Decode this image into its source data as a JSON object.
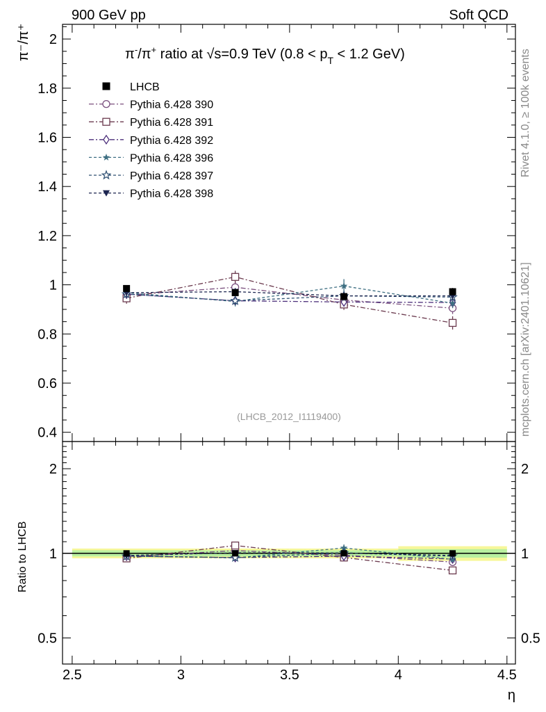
{
  "header": {
    "left": "900 GeV pp",
    "right": "Soft QCD"
  },
  "side_labels": {
    "rivet": "Rivet 4.1.0, ≥ 100k events",
    "mcplots": "mcplots.cern.ch [arXiv:2401.10621]"
  },
  "chart_data": {
    "type": "scatter",
    "title": "π⁻/π⁺ ratio at √s=0.9 TeV (0.8 < p_T < 1.2 GeV)",
    "title_parts": {
      "pre": "π",
      "pre_sup1": "-",
      "mid": "/π",
      "pre_sup2": "+",
      "after": " ratio at ",
      "sqrt": "√",
      "s_text": "s=0.9 TeV (0.8 < p",
      "sub": "T",
      "end": " < 1.2 GeV)"
    },
    "analysis_id": "(LHCB_2012_I1119400)",
    "xlabel": "η",
    "ylabel_main": "π⁻/π⁺",
    "ylabel_ratio": "Ratio to LHCB",
    "xlim": [
      2.5,
      4.5
    ],
    "ylim_main": [
      0.38,
      2.05
    ],
    "ylim_ratio_log": [
      0.4,
      2.5
    ],
    "x_ticks": [
      2.5,
      3,
      3.5,
      4,
      4.5
    ],
    "x_tick_labels": [
      "2.5",
      "3",
      "3.5",
      "4",
      "4.5"
    ],
    "y_ticks_main": [
      0.4,
      0.6,
      0.8,
      1,
      1.2,
      1.4,
      1.6,
      1.8,
      2
    ],
    "y_tick_labels_main": [
      "0.4",
      "0.6",
      "0.8",
      "1",
      "1.2",
      "1.4",
      "1.6",
      "1.8",
      "2"
    ],
    "y_ticks_ratio": [
      0.5,
      1,
      2
    ],
    "y_tick_labels_ratio": [
      "0.5",
      "1",
      "2"
    ],
    "reference": {
      "name": "LHCB",
      "x": [
        2.75,
        3.25,
        3.75,
        4.25
      ],
      "y": [
        0.985,
        0.968,
        0.952,
        0.972
      ],
      "err": [
        0.012,
        0.012,
        0.012,
        0.015
      ],
      "band_inner": [
        0.025,
        0.025,
        0.025,
        0.035
      ],
      "band_outer": [
        0.04,
        0.04,
        0.04,
        0.06
      ]
    },
    "series": [
      {
        "name": "Pythia 6.428 390",
        "color": "#7a4f7e",
        "marker": "circle-open",
        "dash": "7,3,2,3",
        "x": [
          2.75,
          3.25,
          3.75,
          4.25
        ],
        "y": [
          0.958,
          0.99,
          0.938,
          0.905
        ],
        "err": [
          0.02,
          0.022,
          0.022,
          0.024
        ]
      },
      {
        "name": "Pythia 6.428 391",
        "color": "#6b3a4e",
        "marker": "square-open",
        "dash": "7,3,2,3",
        "x": [
          2.75,
          3.25,
          3.75,
          4.25
        ],
        "y": [
          0.945,
          1.032,
          0.92,
          0.845
        ],
        "err": [
          0.022,
          0.025,
          0.022,
          0.027
        ]
      },
      {
        "name": "Pythia 6.428 392",
        "color": "#4b2e7a",
        "marker": "diamond-open",
        "dash": "7,3,2,3",
        "x": [
          2.75,
          3.25,
          3.75,
          4.25
        ],
        "y": [
          0.962,
          0.935,
          0.93,
          0.928
        ],
        "err": [
          0.018,
          0.018,
          0.018,
          0.02
        ]
      },
      {
        "name": "Pythia 6.428 396",
        "color": "#3e6f82",
        "marker": "star-filled",
        "dash": "4,3",
        "x": [
          2.75,
          3.25,
          3.75,
          4.25
        ],
        "y": [
          0.968,
          0.932,
          0.995,
          0.925
        ],
        "err": [
          0.018,
          0.02,
          0.028,
          0.02
        ]
      },
      {
        "name": "Pythia 6.428 397",
        "color": "#2e4f72",
        "marker": "star-open",
        "dash": "4,3",
        "x": [
          2.75,
          3.25,
          3.75,
          4.25
        ],
        "y": [
          0.962,
          0.935,
          0.955,
          0.95
        ],
        "err": [
          0.018,
          0.018,
          0.02,
          0.02
        ]
      },
      {
        "name": "Pythia 6.428 398",
        "color": "#1c2550",
        "marker": "triangle-down-filled",
        "dash": "4,3",
        "x": [
          2.75,
          3.25,
          3.75,
          4.25
        ],
        "y": [
          0.968,
          0.972,
          0.955,
          0.955
        ],
        "err": [
          0.015,
          0.015,
          0.015,
          0.015
        ]
      }
    ]
  }
}
